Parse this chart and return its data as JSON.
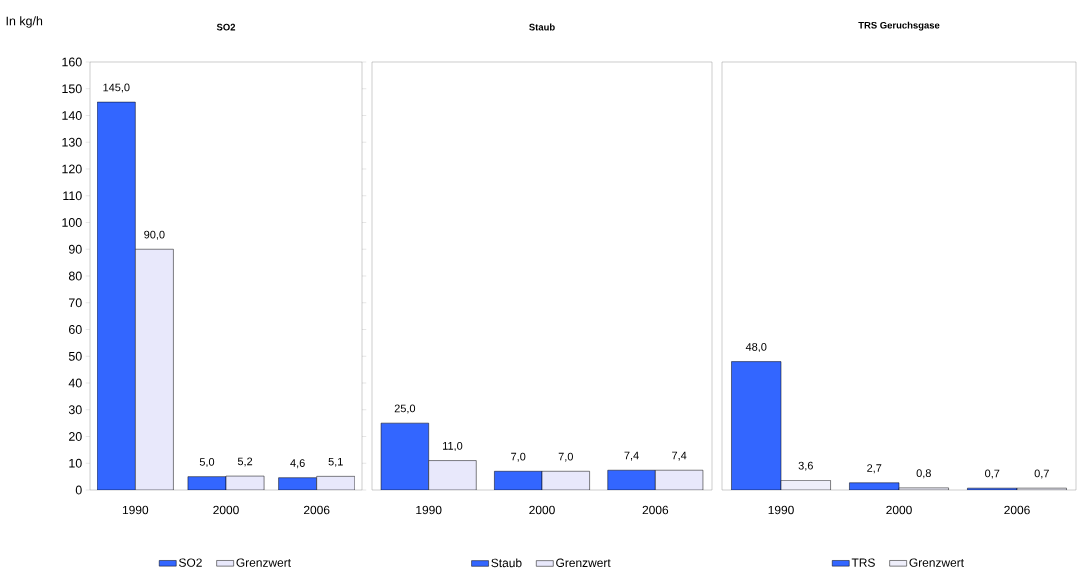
{
  "chart_data": [
    {
      "type": "bar",
      "title": "SO2",
      "ylabel": "In kg/h",
      "categories": [
        "1990",
        "2000",
        "2006"
      ],
      "series": [
        {
          "name": "SO2",
          "color": "#3366ff",
          "values": [
            145.0,
            5.0,
            4.6
          ],
          "value_labels": [
            "145,0",
            "5,0",
            "4,6"
          ]
        },
        {
          "name": "Grenzwert",
          "color": "#e8e8fb",
          "values": [
            90.0,
            5.2,
            5.1
          ],
          "value_labels": [
            "90,0",
            "5,2",
            "5,1"
          ]
        }
      ],
      "ylim": [
        0,
        160
      ],
      "yticks": [
        0,
        10,
        20,
        30,
        40,
        50,
        60,
        70,
        80,
        90,
        100,
        110,
        120,
        130,
        140,
        150,
        160
      ],
      "legend": "bottom",
      "grid": false
    },
    {
      "type": "bar",
      "title": "Staub",
      "categories": [
        "1990",
        "2000",
        "2006"
      ],
      "series": [
        {
          "name": "Staub",
          "color": "#3366ff",
          "values": [
            25.0,
            7.0,
            7.4
          ],
          "value_labels": [
            "25,0",
            "7,0",
            "7,4"
          ]
        },
        {
          "name": "Grenzwert",
          "color": "#e8e8fb",
          "values": [
            11.0,
            7.0,
            7.4
          ],
          "value_labels": [
            "11,0",
            "7,0",
            "7,4"
          ]
        }
      ],
      "ylim": [
        0,
        160
      ],
      "tick_labels": "x",
      "legend": "bottom",
      "grid": false
    },
    {
      "type": "bar",
      "title": "TRS Geruchsgase",
      "categories": [
        "1990",
        "2000",
        "2006"
      ],
      "series": [
        {
          "name": "TRS",
          "color": "#3366ff",
          "values": [
            48.0,
            2.7,
            0.7
          ],
          "value_labels": [
            "48,0",
            "2,7",
            "0,7"
          ]
        },
        {
          "name": "Grenzwert",
          "color": "#eeeefa",
          "values": [
            3.6,
            0.8,
            0.7
          ],
          "value_labels": [
            "3,6",
            "0,8",
            "0,7"
          ]
        }
      ],
      "ylim": [
        0,
        160
      ],
      "tick_labels": "x",
      "legend": "bottom",
      "grid": false
    }
  ]
}
